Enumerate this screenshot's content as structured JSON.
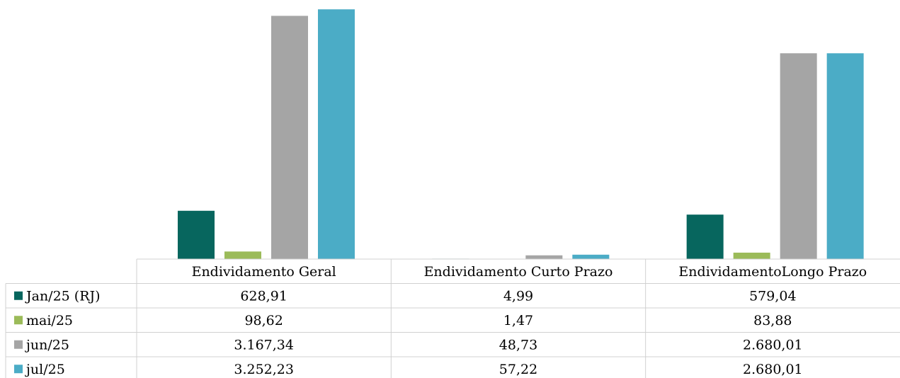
{
  "chart_data": {
    "type": "bar",
    "categories": [
      "Endividamento Geral",
      "Endividamento Curto Prazo",
      "EndividamentoLongo Prazo"
    ],
    "series": [
      {
        "name": "Jan/25 (RJ)",
        "color": "#07665E",
        "values": [
          628.91,
          4.99,
          579.04
        ],
        "labels": [
          "628,91",
          "4,99",
          "579,04"
        ]
      },
      {
        "name": "mai/25",
        "color": "#9BBB59",
        "values": [
          98.62,
          1.47,
          83.88
        ],
        "labels": [
          "98,62",
          "1,47",
          "83,88"
        ]
      },
      {
        "name": "jun/25",
        "color": "#A5A5A5",
        "values": [
          3167.34,
          48.73,
          2680.01
        ],
        "labels": [
          "3.167,34",
          "48,73",
          "2.680,01"
        ]
      },
      {
        "name": "jul/25",
        "color": "#4BACC6",
        "values": [
          3252.23,
          57.22,
          2680.01
        ],
        "labels": [
          "3.252,23",
          "57,22",
          "2.680,01"
        ]
      }
    ],
    "title": "",
    "xlabel": "",
    "ylabel": "",
    "ylim": [
      0,
      3300
    ],
    "legend": "data-table-left",
    "grid": false
  }
}
